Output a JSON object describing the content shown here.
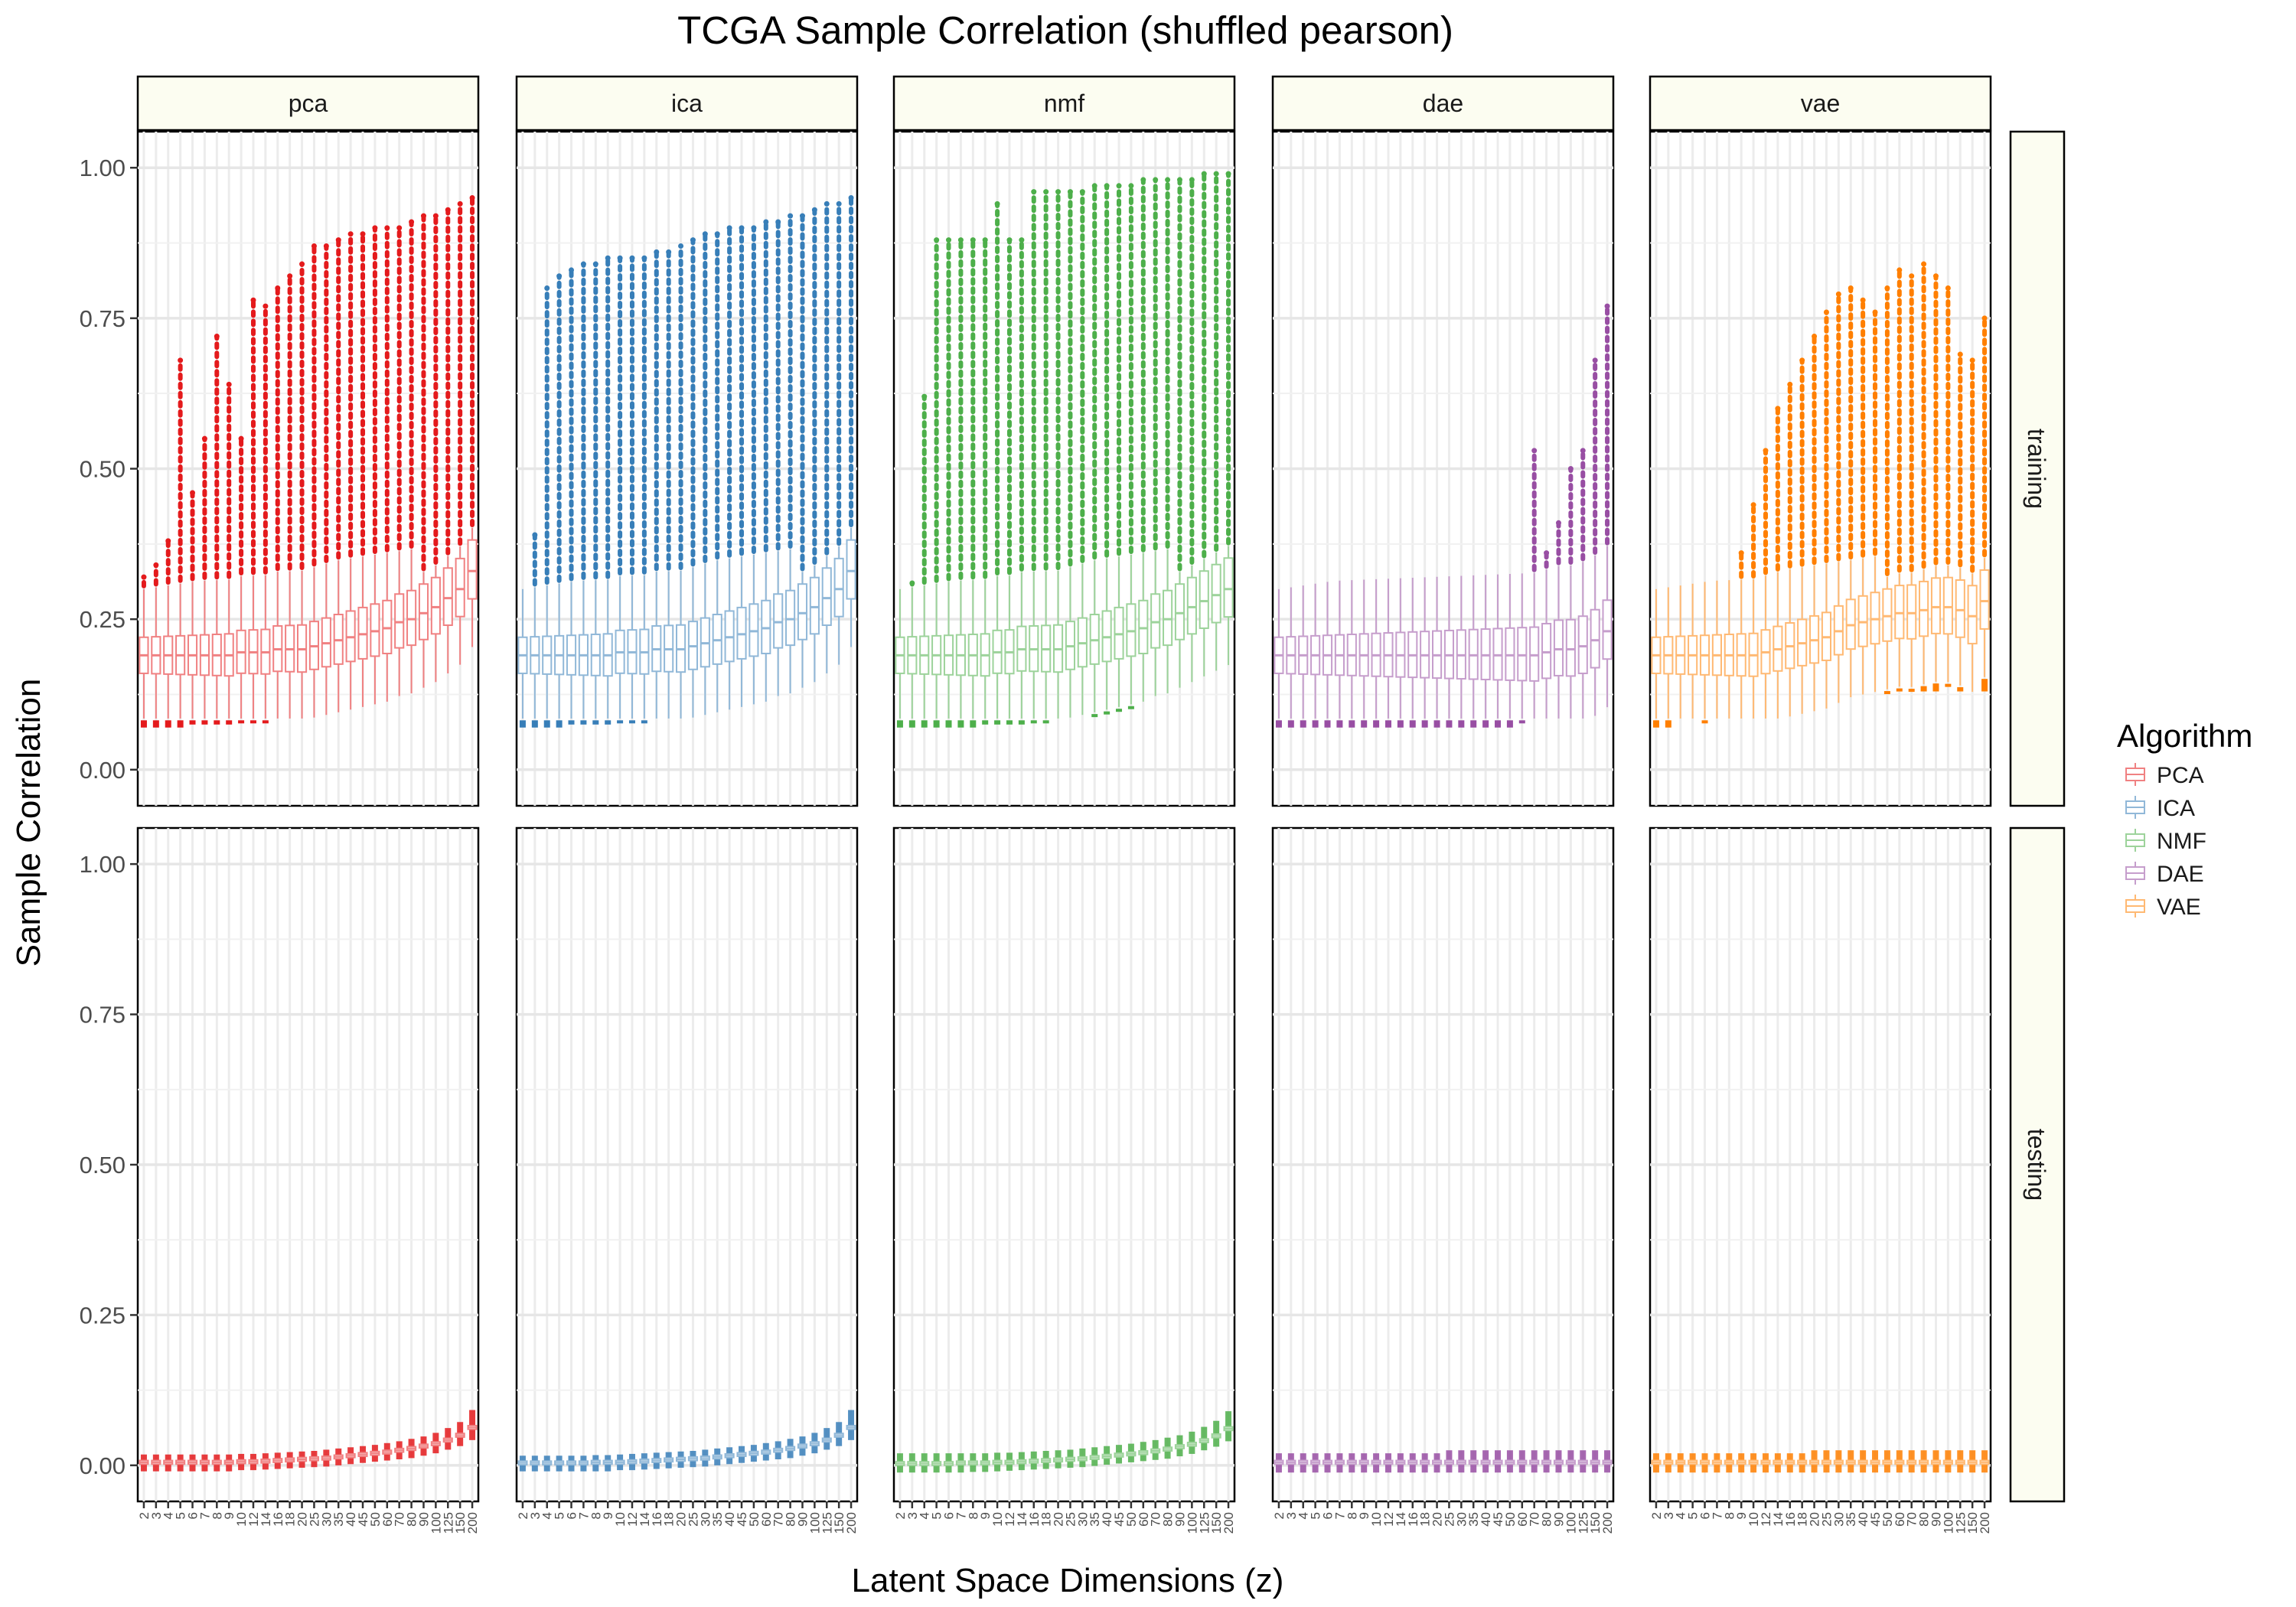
{
  "chart_data": {
    "type": "boxplot",
    "title": "TCGA Sample Correlation (shuffled pearson)",
    "xlabel": "Latent Space Dimensions (z)",
    "ylabel": "Sample Correlation",
    "ylim": [
      -0.06,
      1.06
    ],
    "y_ticks": [
      "0.00",
      "0.25",
      "0.50",
      "0.75",
      "1.00"
    ],
    "categories": [
      "2",
      "3",
      "4",
      "5",
      "6",
      "7",
      "8",
      "9",
      "10",
      "12",
      "14",
      "16",
      "18",
      "20",
      "25",
      "30",
      "35",
      "40",
      "45",
      "50",
      "60",
      "70",
      "80",
      "90",
      "100",
      "125",
      "150",
      "200"
    ],
    "facet_columns": [
      "pca",
      "ica",
      "nmf",
      "dae",
      "vae"
    ],
    "facet_rows": [
      "training",
      "testing"
    ],
    "legend": {
      "title": "Algorithm",
      "position": "right",
      "entries": [
        {
          "label": "PCA",
          "color": "#e41a1c"
        },
        {
          "label": "ICA",
          "color": "#377eb8"
        },
        {
          "label": "NMF",
          "color": "#4daf4a"
        },
        {
          "label": "DAE",
          "color": "#984ea3"
        },
        {
          "label": "VAE",
          "color": "#ff7f00"
        }
      ]
    },
    "series": [
      {
        "name": "PCA",
        "facet": "pca",
        "color": "#e41a1c",
        "training_median": [
          0.19,
          0.19,
          0.19,
          0.19,
          0.19,
          0.19,
          0.19,
          0.19,
          0.195,
          0.195,
          0.195,
          0.2,
          0.2,
          0.2,
          0.205,
          0.21,
          0.215,
          0.22,
          0.225,
          0.23,
          0.235,
          0.245,
          0.25,
          0.26,
          0.27,
          0.285,
          0.3,
          0.33
        ],
        "training_outlier_max": [
          0.32,
          0.34,
          0.38,
          0.68,
          0.46,
          0.55,
          0.72,
          0.64,
          0.55,
          0.78,
          0.77,
          0.8,
          0.82,
          0.84,
          0.87,
          0.87,
          0.88,
          0.89,
          0.89,
          0.9,
          0.9,
          0.9,
          0.91,
          0.92,
          0.92,
          0.93,
          0.94,
          0.95
        ],
        "training_outlier_min": [
          0.07,
          0.07,
          0.07,
          0.07,
          0.075,
          0.075,
          0.075,
          0.075,
          0.08,
          0.08,
          0.08,
          0.085,
          0.085,
          0.09,
          0.095,
          0.1,
          0.105,
          0.11,
          0.115,
          0.12,
          0.125,
          0.13,
          0.14,
          0.15,
          0.16,
          0.17,
          0.19,
          0.21
        ],
        "testing_median": [
          0.005,
          0.005,
          0.005,
          0.005,
          0.005,
          0.005,
          0.005,
          0.005,
          0.006,
          0.006,
          0.007,
          0.008,
          0.009,
          0.01,
          0.011,
          0.012,
          0.014,
          0.016,
          0.018,
          0.02,
          0.022,
          0.025,
          0.028,
          0.032,
          0.036,
          0.042,
          0.05,
          0.063
        ],
        "testing_max": [
          0.018,
          0.018,
          0.018,
          0.018,
          0.018,
          0.018,
          0.018,
          0.018,
          0.019,
          0.019,
          0.02,
          0.021,
          0.022,
          0.023,
          0.024,
          0.026,
          0.028,
          0.03,
          0.032,
          0.034,
          0.037,
          0.04,
          0.044,
          0.048,
          0.054,
          0.062,
          0.072,
          0.092
        ],
        "testing_min": [
          -0.01,
          -0.01,
          -0.01,
          -0.01,
          -0.01,
          -0.01,
          -0.01,
          -0.01,
          -0.008,
          -0.008,
          -0.007,
          -0.006,
          -0.005,
          -0.004,
          -0.003,
          -0.002,
          0,
          0.002,
          0.004,
          0.006,
          0.008,
          0.01,
          0.012,
          0.016,
          0.02,
          0.026,
          0.032,
          0.042
        ]
      },
      {
        "name": "ICA",
        "facet": "ica",
        "color": "#377eb8",
        "training_median": [
          0.19,
          0.19,
          0.19,
          0.19,
          0.19,
          0.19,
          0.19,
          0.19,
          0.195,
          0.195,
          0.195,
          0.2,
          0.2,
          0.2,
          0.205,
          0.21,
          0.215,
          0.22,
          0.225,
          0.23,
          0.235,
          0.245,
          0.25,
          0.26,
          0.27,
          0.285,
          0.3,
          0.33
        ],
        "training_outlier_max": [
          0.3,
          0.39,
          0.8,
          0.82,
          0.83,
          0.84,
          0.84,
          0.85,
          0.85,
          0.85,
          0.85,
          0.86,
          0.86,
          0.87,
          0.88,
          0.89,
          0.89,
          0.9,
          0.9,
          0.9,
          0.91,
          0.91,
          0.92,
          0.92,
          0.93,
          0.94,
          0.94,
          0.95
        ],
        "training_outlier_min": [
          0.07,
          0.07,
          0.07,
          0.07,
          0.075,
          0.075,
          0.075,
          0.075,
          0.08,
          0.08,
          0.08,
          0.085,
          0.085,
          0.09,
          0.095,
          0.1,
          0.105,
          0.11,
          0.115,
          0.12,
          0.125,
          0.13,
          0.14,
          0.15,
          0.16,
          0.17,
          0.19,
          0.21
        ],
        "testing_median": [
          0.004,
          0.004,
          0.004,
          0.004,
          0.004,
          0.004,
          0.005,
          0.005,
          0.005,
          0.006,
          0.007,
          0.008,
          0.009,
          0.01,
          0.011,
          0.012,
          0.014,
          0.016,
          0.018,
          0.02,
          0.022,
          0.025,
          0.028,
          0.032,
          0.036,
          0.042,
          0.05,
          0.063
        ],
        "testing_max": [
          0.016,
          0.016,
          0.016,
          0.016,
          0.016,
          0.016,
          0.017,
          0.017,
          0.018,
          0.019,
          0.02,
          0.021,
          0.022,
          0.023,
          0.024,
          0.026,
          0.028,
          0.03,
          0.032,
          0.034,
          0.037,
          0.04,
          0.044,
          0.048,
          0.054,
          0.062,
          0.072,
          0.092
        ],
        "testing_min": [
          -0.01,
          -0.01,
          -0.01,
          -0.01,
          -0.01,
          -0.01,
          -0.01,
          -0.01,
          -0.008,
          -0.008,
          -0.007,
          -0.006,
          -0.005,
          -0.004,
          -0.003,
          -0.002,
          0,
          0.002,
          0.004,
          0.006,
          0.008,
          0.01,
          0.012,
          0.016,
          0.02,
          0.026,
          0.032,
          0.042
        ]
      },
      {
        "name": "NMF",
        "facet": "nmf",
        "color": "#4daf4a",
        "training_median": [
          0.19,
          0.19,
          0.19,
          0.19,
          0.19,
          0.19,
          0.19,
          0.19,
          0.195,
          0.195,
          0.2,
          0.2,
          0.2,
          0.2,
          0.205,
          0.21,
          0.215,
          0.22,
          0.225,
          0.23,
          0.235,
          0.245,
          0.25,
          0.26,
          0.27,
          0.28,
          0.29,
          0.3
        ],
        "training_outlier_max": [
          0.3,
          0.31,
          0.62,
          0.88,
          0.88,
          0.88,
          0.88,
          0.88,
          0.94,
          0.88,
          0.88,
          0.96,
          0.96,
          0.96,
          0.96,
          0.96,
          0.97,
          0.97,
          0.97,
          0.97,
          0.98,
          0.98,
          0.98,
          0.98,
          0.98,
          0.99,
          0.99,
          0.99
        ],
        "training_outlier_min": [
          0.07,
          0.07,
          0.07,
          0.07,
          0.07,
          0.07,
          0.07,
          0.075,
          0.075,
          0.075,
          0.075,
          0.08,
          0.08,
          0.085,
          0.085,
          0.09,
          0.09,
          0.095,
          0.1,
          0.105,
          0.11,
          0.12,
          0.125,
          0.135,
          0.145,
          0.155,
          0.17,
          0.18
        ],
        "testing_median": [
          0.003,
          0.003,
          0.003,
          0.003,
          0.003,
          0.004,
          0.004,
          0.004,
          0.005,
          0.005,
          0.006,
          0.007,
          0.008,
          0.009,
          0.01,
          0.011,
          0.013,
          0.015,
          0.017,
          0.019,
          0.021,
          0.024,
          0.027,
          0.031,
          0.035,
          0.041,
          0.049,
          0.061
        ],
        "testing_max": [
          0.02,
          0.02,
          0.02,
          0.02,
          0.02,
          0.02,
          0.02,
          0.02,
          0.021,
          0.021,
          0.022,
          0.023,
          0.024,
          0.025,
          0.026,
          0.028,
          0.03,
          0.032,
          0.034,
          0.036,
          0.039,
          0.042,
          0.046,
          0.05,
          0.056,
          0.064,
          0.074,
          0.09
        ],
        "testing_min": [
          -0.012,
          -0.012,
          -0.012,
          -0.012,
          -0.012,
          -0.012,
          -0.011,
          -0.011,
          -0.01,
          -0.009,
          -0.008,
          -0.007,
          -0.006,
          -0.005,
          -0.004,
          -0.003,
          -0.001,
          0.001,
          0.003,
          0.005,
          0.007,
          0.009,
          0.011,
          0.015,
          0.019,
          0.025,
          0.031,
          0.04
        ]
      },
      {
        "name": "DAE",
        "facet": "dae",
        "color": "#984ea3",
        "training_median": [
          0.19,
          0.19,
          0.19,
          0.19,
          0.19,
          0.19,
          0.19,
          0.19,
          0.19,
          0.19,
          0.19,
          0.19,
          0.19,
          0.19,
          0.19,
          0.19,
          0.19,
          0.19,
          0.19,
          0.19,
          0.19,
          0.19,
          0.195,
          0.2,
          0.2,
          0.205,
          0.215,
          0.23
        ],
        "training_outlier_max": [
          0.3,
          0.3,
          0.3,
          0.3,
          0.3,
          0.3,
          0.3,
          0.3,
          0.3,
          0.3,
          0.3,
          0.3,
          0.3,
          0.3,
          0.3,
          0.3,
          0.3,
          0.3,
          0.3,
          0.3,
          0.3,
          0.53,
          0.36,
          0.41,
          0.5,
          0.53,
          0.68,
          0.77
        ],
        "training_outlier_min": [
          0.07,
          0.07,
          0.07,
          0.07,
          0.07,
          0.07,
          0.07,
          0.07,
          0.07,
          0.07,
          0.07,
          0.07,
          0.07,
          0.07,
          0.07,
          0.07,
          0.07,
          0.07,
          0.07,
          0.07,
          0.08,
          0.09,
          0.09,
          0.09,
          0.1,
          0.1,
          0.11,
          0.11
        ],
        "testing_median": [
          0.005,
          0.005,
          0.005,
          0.005,
          0.005,
          0.005,
          0.005,
          0.005,
          0.005,
          0.005,
          0.005,
          0.005,
          0.005,
          0.005,
          0.005,
          0.005,
          0.005,
          0.005,
          0.005,
          0.005,
          0.005,
          0.005,
          0.005,
          0.005,
          0.005,
          0.005,
          0.005,
          0.005
        ],
        "testing_max": [
          0.02,
          0.02,
          0.02,
          0.02,
          0.02,
          0.02,
          0.02,
          0.02,
          0.02,
          0.02,
          0.02,
          0.02,
          0.02,
          0.02,
          0.025,
          0.025,
          0.025,
          0.025,
          0.025,
          0.025,
          0.025,
          0.025,
          0.025,
          0.025,
          0.025,
          0.025,
          0.025,
          0.025
        ],
        "testing_min": [
          -0.012,
          -0.012,
          -0.012,
          -0.012,
          -0.012,
          -0.012,
          -0.012,
          -0.012,
          -0.012,
          -0.012,
          -0.012,
          -0.012,
          -0.012,
          -0.012,
          -0.012,
          -0.012,
          -0.012,
          -0.012,
          -0.012,
          -0.012,
          -0.012,
          -0.012,
          -0.012,
          -0.012,
          -0.012,
          -0.012,
          -0.012,
          -0.012
        ]
      },
      {
        "name": "VAE",
        "facet": "vae",
        "color": "#ff7f00",
        "training_median": [
          0.19,
          0.19,
          0.19,
          0.19,
          0.19,
          0.19,
          0.19,
          0.19,
          0.19,
          0.195,
          0.2,
          0.205,
          0.21,
          0.215,
          0.22,
          0.23,
          0.24,
          0.245,
          0.25,
          0.255,
          0.26,
          0.26,
          0.265,
          0.27,
          0.27,
          0.265,
          0.255,
          0.28
        ],
        "training_outlier_max": [
          0.3,
          0.3,
          0.3,
          0.3,
          0.3,
          0.3,
          0.3,
          0.36,
          0.44,
          0.53,
          0.6,
          0.64,
          0.68,
          0.72,
          0.76,
          0.79,
          0.8,
          0.78,
          0.76,
          0.8,
          0.83,
          0.82,
          0.84,
          0.82,
          0.8,
          0.69,
          0.68,
          0.75
        ],
        "training_outlier_min": [
          0.07,
          0.07,
          0.09,
          0.09,
          0.08,
          0.09,
          0.09,
          0.1,
          0.1,
          0.1,
          0.1,
          0.11,
          0.11,
          0.12,
          0.12,
          0.13,
          0.13,
          0.13,
          0.13,
          0.13,
          0.13,
          0.13,
          0.13,
          0.13,
          0.14,
          0.13,
          0.13,
          0.13
        ],
        "testing_median": [
          0.005,
          0.005,
          0.005,
          0.005,
          0.005,
          0.005,
          0.005,
          0.005,
          0.005,
          0.005,
          0.005,
          0.005,
          0.005,
          0.005,
          0.005,
          0.005,
          0.005,
          0.005,
          0.005,
          0.005,
          0.005,
          0.005,
          0.005,
          0.005,
          0.005,
          0.005,
          0.005,
          0.005
        ],
        "testing_max": [
          0.02,
          0.02,
          0.02,
          0.02,
          0.02,
          0.02,
          0.02,
          0.02,
          0.02,
          0.02,
          0.02,
          0.02,
          0.02,
          0.025,
          0.025,
          0.025,
          0.025,
          0.025,
          0.025,
          0.025,
          0.025,
          0.025,
          0.025,
          0.025,
          0.025,
          0.025,
          0.025,
          0.025
        ],
        "testing_min": [
          -0.012,
          -0.012,
          -0.012,
          -0.012,
          -0.012,
          -0.012,
          -0.012,
          -0.012,
          -0.012,
          -0.012,
          -0.012,
          -0.012,
          -0.012,
          -0.012,
          -0.012,
          -0.012,
          -0.012,
          -0.012,
          -0.012,
          -0.012,
          -0.012,
          -0.012,
          -0.012,
          -0.012,
          -0.012,
          -0.012,
          -0.012,
          -0.012
        ]
      }
    ]
  }
}
